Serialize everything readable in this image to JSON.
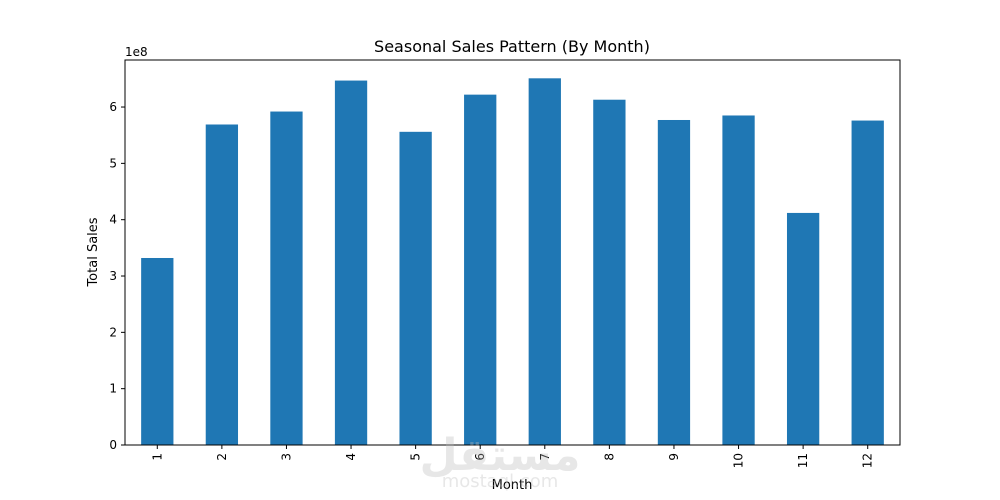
{
  "chart_data": {
    "type": "bar",
    "title": "Seasonal Sales Pattern (By Month)",
    "xlabel": "Month",
    "ylabel": "Total Sales",
    "categories": [
      "1",
      "2",
      "3",
      "4",
      "5",
      "6",
      "7",
      "8",
      "9",
      "10",
      "11",
      "12"
    ],
    "values": [
      332000000,
      569000000,
      592000000,
      647000000,
      556000000,
      622000000,
      651000000,
      613000000,
      577000000,
      585000000,
      412000000,
      576000000
    ],
    "y_scale_label": "1e8",
    "y_ticks": [
      0,
      1,
      2,
      3,
      4,
      5,
      6
    ],
    "y_tick_multiplier": 100000000,
    "ylim": [
      0,
      683500000
    ],
    "bar_color": "#1f77b4",
    "grid": false,
    "legend": "none"
  },
  "watermark": {
    "logo_text": "مستقل",
    "url_text": "mostaql.com"
  }
}
